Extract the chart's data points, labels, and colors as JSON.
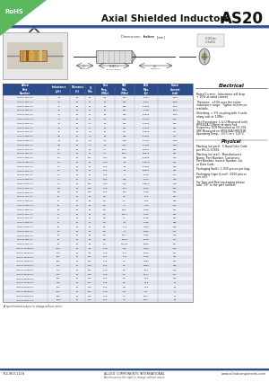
{
  "title": "Axial Shielded Inductors",
  "part_number": "AS20",
  "rohs_text": "RoHS",
  "rohs_color": "#5cb85c",
  "header_color": "#2b4d8c",
  "header_text_color": "#ffffff",
  "alt_row_color": "#dde2ee",
  "row_color": "#eef0f6",
  "table_data": [
    [
      "AS20-8-100-JAC",
      ".10",
      "10",
      "50",
      "25",
      "400",
      "0.011",
      "1600"
    ],
    [
      "AS20-8-12R-JAC",
      ".12",
      "10",
      "50",
      "25",
      "400",
      "0.007",
      "1980"
    ],
    [
      "AS20-8-15R-JAC",
      ".15",
      "10",
      "50",
      "25",
      "400",
      "0.1006",
      "1000"
    ],
    [
      "AS20-8-18R-JAC",
      ".18",
      "10",
      "50",
      "25",
      "400",
      "0.148",
      "1000"
    ],
    [
      "AS20-8-22R-JAC",
      ".22",
      "10",
      "50",
      "25",
      "400",
      "0.1865",
      "1000"
    ],
    [
      "AS20-8-27R-JAC",
      ".27",
      "10",
      "50",
      "25",
      "400",
      "0.1700",
      "886"
    ],
    [
      "AS20-8-33R-JAC",
      ".33",
      "10",
      "1.1",
      "25",
      "372",
      "0.2106",
      "886"
    ],
    [
      "AS20-8-39R-JAC",
      ".39",
      "10",
      "1.1",
      "25",
      "275",
      "0.2108",
      "886"
    ],
    [
      "AS20-8-47R-JAC",
      ".47",
      "10",
      "1.0",
      "25",
      "111",
      "0.4481",
      "717"
    ],
    [
      "AS20-8-56R-JAC",
      ".56",
      "10",
      "1.4",
      "25",
      "265",
      "0.4105",
      "717"
    ],
    [
      "AS20-8-68R-JAC",
      ".68",
      "10",
      "1.8",
      "25",
      "168",
      "0.1702",
      "1050"
    ],
    [
      "AS20-8-82R-JAC",
      ".82",
      "10",
      "3.4",
      "25",
      "100",
      "0.1769",
      "1050"
    ],
    [
      "AS20-8-100-JAC",
      "1.0",
      "10",
      "33",
      "7.9",
      "1000",
      "0.5044",
      "645"
    ],
    [
      "AS20-8-12R-JAC",
      "1.2",
      "10",
      "33",
      "7.9",
      "1000",
      "0.5514",
      "615"
    ],
    [
      "AS20-8-15R-JAC",
      "1.5",
      "10",
      "109",
      "1.00",
      "718",
      "0.4630",
      "700"
    ],
    [
      "AS20-8-18R-JAC",
      "1.8",
      "10",
      "52",
      "1.00",
      "84",
      "0.4210",
      "641"
    ],
    [
      "AS20-8-22R-JAC",
      "2.2",
      "10",
      "52",
      "1.00",
      "84",
      "0.7596",
      "448"
    ],
    [
      "AS20-8-27R-JAC",
      "2.7",
      "10",
      "52",
      "1.00",
      "84",
      "0.5560",
      "641"
    ],
    [
      "AS20-8-33R-JAC",
      "3.3",
      "10",
      "52",
      "1.00",
      "77",
      "1.175",
      "500"
    ],
    [
      "AS20-8-39R-JAC",
      "3.9",
      "10",
      "52",
      "1.00",
      "490",
      "1.175",
      "500"
    ],
    [
      "AS20-8-47R-JAC",
      "4.7",
      "10",
      "480",
      "1.00",
      "490",
      "0.9810",
      "448"
    ],
    [
      "AS20-8-56R-JAC",
      "5.6",
      "10",
      "480",
      "1.00",
      "15.0",
      "1.136",
      "350"
    ],
    [
      "AS20-8-68R-JAC",
      "6.8",
      "10",
      "480",
      "1.00",
      "490",
      "1.003",
      "350"
    ],
    [
      "AS20-8-100-JAC",
      "10",
      "10",
      "60",
      "0.5",
      "3.5",
      "1.50",
      "380"
    ],
    [
      "AS20-8-12R-JAC",
      "12",
      "10",
      "60",
      "0.5",
      "4.0",
      "1.10",
      "450"
    ],
    [
      "AS20-8-15R-JAC",
      "15",
      "10",
      "60",
      "0.5",
      "4.0",
      "1.50",
      "422"
    ],
    [
      "AS20-8-18R-JAC",
      "18",
      "10",
      "60",
      "0.5",
      "45.8",
      "1.150",
      "421"
    ],
    [
      "AS20-8-22R-JAC",
      "22",
      "10",
      "60",
      "0.5",
      "422.2",
      "1.108",
      "404"
    ],
    [
      "AS20-8-27R-JAC",
      "27",
      "10",
      "48",
      "0.5",
      "3.1",
      "1.108",
      "364"
    ],
    [
      "AS20-8-33R-JAC",
      "33",
      "10",
      "54",
      "0.5",
      "26",
      "1.665",
      "306"
    ],
    [
      "AS20-8-39R-JAC",
      "39",
      "10",
      "54",
      "0.5",
      "24.2",
      "2.450",
      "296"
    ],
    [
      "AS20-8-47R-JAC",
      "47",
      "10",
      "54",
      "0.5",
      "22",
      "2.450",
      "271"
    ],
    [
      "AS20-8-56R-JAC",
      "56",
      "10",
      "60",
      "0.5",
      "271.7",
      "0.360",
      "248"
    ],
    [
      "AS20-8-68R-JAC",
      "68",
      "10",
      "60",
      "0.5",
      "268.8",
      "5.200",
      "217"
    ],
    [
      "AS20-8-82R-JAC",
      "82",
      "10",
      "60",
      "0.5",
      "129.34",
      "5.800",
      "197"
    ],
    [
      "AS20-8-100R-JAC",
      "100",
      "10",
      "60",
      "0.79",
      "175",
      "4.900",
      "196"
    ],
    [
      "AS20-8-120R-JAC",
      "120",
      "10",
      "60",
      "0.79",
      "8.11",
      "5.200",
      "564"
    ],
    [
      "AS20-8-150R-JAC",
      "150",
      "10",
      "160",
      "0.79",
      "6.14",
      "5.200",
      "411"
    ],
    [
      "AS20-8-180R-JAC",
      "180",
      "10",
      "160",
      "0.79",
      "1.4",
      "7.800",
      "990"
    ],
    [
      "AS20-8-220R-JAC",
      "220",
      "10",
      "160",
      "0.79",
      "5.5",
      "8.550",
      "198"
    ],
    [
      "AS20-8-270R-JAC",
      "270",
      "10",
      "160",
      "0.79",
      "5.5",
      "19.4",
      "133"
    ],
    [
      "AS20-8-330R-JAC",
      "330",
      "10",
      "160",
      "0.79",
      "5.5",
      "15.41",
      "107"
    ],
    [
      "AS20-8-390R-JAC",
      "390",
      "10",
      "160",
      "0.79",
      "5.5",
      "12.0",
      "700"
    ],
    [
      "AS20-8-470R-JAC",
      "470",
      "10",
      "160",
      "0.79",
      "4.8",
      "31.6",
      "88"
    ],
    [
      "AS20-8-560R-JAC",
      "560",
      "10",
      "160",
      "0.79",
      "4.8",
      "21.0",
      "81"
    ],
    [
      "AS20-8-680R-JAC",
      "680",
      "10",
      "160",
      "0.79",
      "4.8",
      "7.8",
      "72"
    ],
    [
      "AS20-8-820R-JAC",
      "820",
      "10",
      "160",
      "0.79",
      "4.2",
      "5600",
      "72"
    ],
    [
      "AS20-8-1000-JAC",
      "1000",
      "10",
      "160",
      "0.79",
      "4.0",
      "5800",
      "67"
    ]
  ],
  "footer_phone": "714-969-1118",
  "footer_company": "ALLIED COMPONENTS INTERNATIONAL",
  "footer_web": "www.alliedcomponents.com",
  "footer_note": "Allied reserves the right to change without notice.",
  "background_color": "#ffffff",
  "blue_line_color": "#2b4d8c"
}
